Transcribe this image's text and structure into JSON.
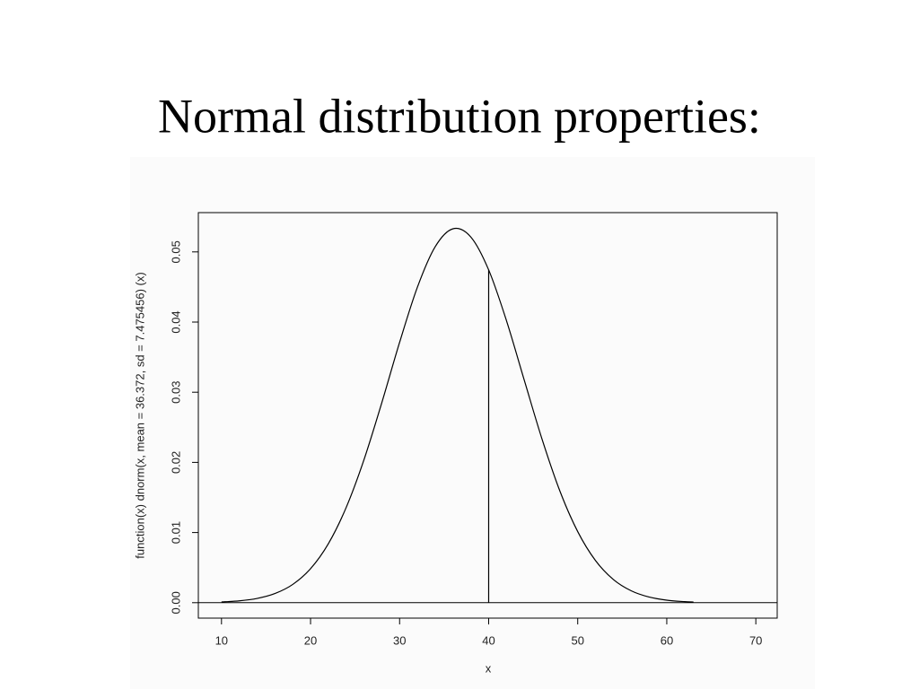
{
  "chart_data": {
    "type": "line",
    "title": "Normal distribution properties:",
    "x_label": "x",
    "y_label": "function(x) dnorm(x, mean = 36.372, sd = 7.475456) (x)",
    "color": "#000000",
    "x": [
      10,
      12,
      14,
      16,
      18,
      20,
      22,
      24,
      26,
      28,
      30,
      32,
      34,
      36,
      38,
      40,
      42,
      44,
      46,
      48,
      50,
      52,
      54,
      56,
      58,
      60,
      62,
      63
    ],
    "values": [
      0.000106,
      0.000263,
      0.000606,
      0.001302,
      0.002604,
      0.00485,
      0.00841,
      0.01357,
      0.02038,
      0.0285,
      0.03711,
      0.04498,
      0.05075,
      0.0533,
      0.05212,
      0.04744,
      0.0402,
      0.03171,
      0.02329,
      0.01591,
      0.01013,
      0.006,
      0.00331,
      0.0017,
      0.000812,
      0.000361,
      0.00015,
      9.38e-05
    ],
    "vline": {
      "x": 40,
      "y": 0.04744
    },
    "hline": 0,
    "xlim": [
      7.4,
      72.4
    ],
    "ylim": [
      -0.0022,
      0.0556
    ],
    "xticks": [
      10,
      20,
      30,
      40,
      50,
      60,
      70
    ],
    "yticks": [
      {
        "value": 0,
        "label": "0.00"
      },
      {
        "value": 0.01,
        "label": "0.01"
      },
      {
        "value": 0.02,
        "label": "0.02"
      },
      {
        "value": 0.03,
        "label": "0.03"
      },
      {
        "value": 0.04,
        "label": "0.04"
      },
      {
        "value": 0.05,
        "label": "0.05"
      }
    ]
  }
}
